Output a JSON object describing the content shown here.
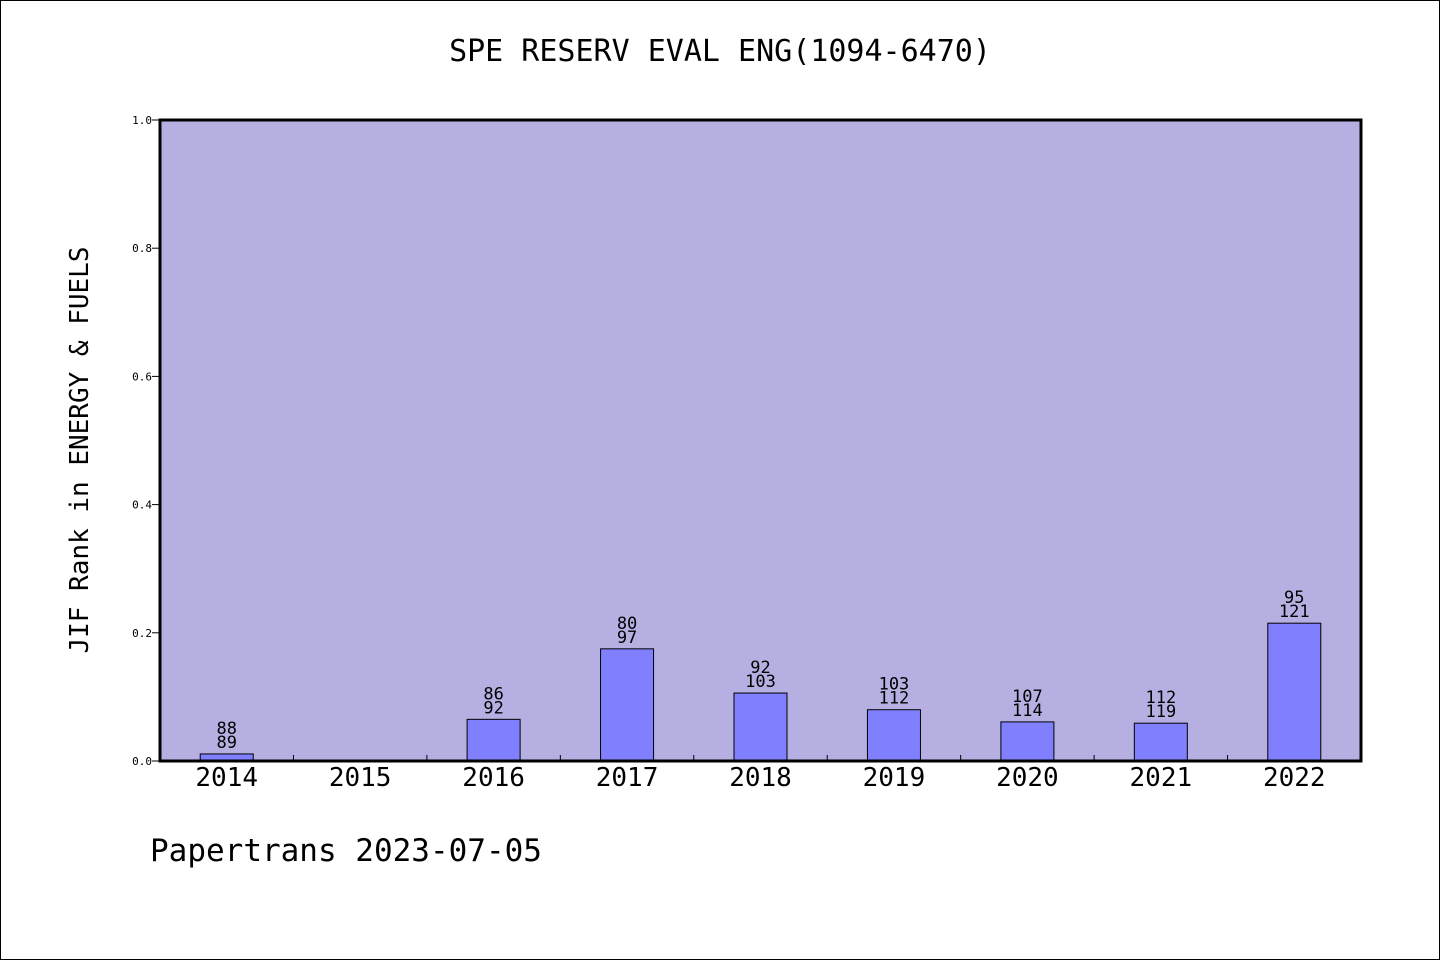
{
  "chart_data": {
    "type": "bar",
    "title": "SPE RESERV EVAL ENG(1094-6470)",
    "xlabel": "",
    "ylabel": "JIF Rank in ENERGY & FUELS",
    "ylim": [
      0,
      1.0
    ],
    "yticks": [
      "0.0",
      "0.2",
      "0.4",
      "0.6",
      "0.8",
      "1.0"
    ],
    "categories": [
      "2014",
      "2015",
      "2016",
      "2017",
      "2018",
      "2019",
      "2020",
      "2021",
      "2022"
    ],
    "values": [
      0.011,
      null,
      0.065,
      0.175,
      0.106,
      0.08,
      0.061,
      0.059,
      0.215
    ],
    "label_top": [
      "88",
      "",
      "86",
      "80",
      "92",
      "103",
      "107",
      "112",
      "95"
    ],
    "label_bottom": [
      "89",
      "",
      "92",
      "97",
      "103",
      "112",
      "114",
      "119",
      "121"
    ],
    "grid": false,
    "legend": "none",
    "colors": {
      "plot_background": "#b6b0e2",
      "bar_fill": "#8080ff",
      "bar_stroke": "#000000",
      "axis": "#000000"
    }
  },
  "footer": {
    "text": "Papertrans 2023-07-05"
  }
}
